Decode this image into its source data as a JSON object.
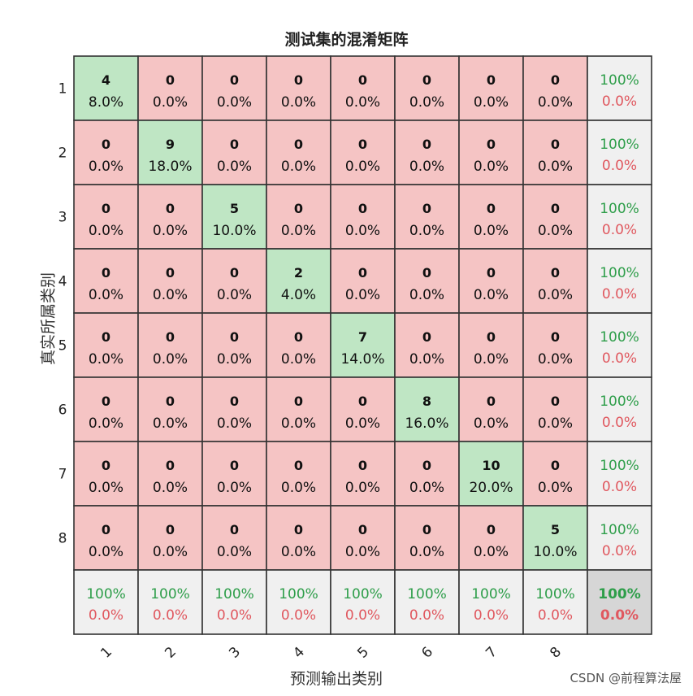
{
  "chart_data": {
    "type": "heatmap",
    "title": "测试集的混淆矩阵",
    "xlabel": "预测输出类别",
    "ylabel": "真实所属类别",
    "classes": [
      "1",
      "2",
      "3",
      "4",
      "5",
      "6",
      "7",
      "8"
    ],
    "matrix": [
      [
        4,
        0,
        0,
        0,
        0,
        0,
        0,
        0
      ],
      [
        0,
        9,
        0,
        0,
        0,
        0,
        0,
        0
      ],
      [
        0,
        0,
        5,
        0,
        0,
        0,
        0,
        0
      ],
      [
        0,
        0,
        0,
        2,
        0,
        0,
        0,
        0
      ],
      [
        0,
        0,
        0,
        0,
        7,
        0,
        0,
        0
      ],
      [
        0,
        0,
        0,
        0,
        0,
        8,
        0,
        0
      ],
      [
        0,
        0,
        0,
        0,
        0,
        0,
        10,
        0
      ],
      [
        0,
        0,
        0,
        0,
        0,
        0,
        0,
        5
      ]
    ],
    "cell_percents": [
      [
        "8.0%",
        "0.0%",
        "0.0%",
        "0.0%",
        "0.0%",
        "0.0%",
        "0.0%",
        "0.0%"
      ],
      [
        "0.0%",
        "18.0%",
        "0.0%",
        "0.0%",
        "0.0%",
        "0.0%",
        "0.0%",
        "0.0%"
      ],
      [
        "0.0%",
        "0.0%",
        "10.0%",
        "0.0%",
        "0.0%",
        "0.0%",
        "0.0%",
        "0.0%"
      ],
      [
        "0.0%",
        "0.0%",
        "0.0%",
        "4.0%",
        "0.0%",
        "0.0%",
        "0.0%",
        "0.0%"
      ],
      [
        "0.0%",
        "0.0%",
        "0.0%",
        "0.0%",
        "14.0%",
        "0.0%",
        "0.0%",
        "0.0%"
      ],
      [
        "0.0%",
        "0.0%",
        "0.0%",
        "0.0%",
        "0.0%",
        "16.0%",
        "0.0%",
        "0.0%"
      ],
      [
        "0.0%",
        "0.0%",
        "0.0%",
        "0.0%",
        "0.0%",
        "0.0%",
        "20.0%",
        "0.0%"
      ],
      [
        "0.0%",
        "0.0%",
        "0.0%",
        "0.0%",
        "0.0%",
        "0.0%",
        "0.0%",
        "10.0%"
      ]
    ],
    "row_summary": [
      [
        "100%",
        "0.0%"
      ],
      [
        "100%",
        "0.0%"
      ],
      [
        "100%",
        "0.0%"
      ],
      [
        "100%",
        "0.0%"
      ],
      [
        "100%",
        "0.0%"
      ],
      [
        "100%",
        "0.0%"
      ],
      [
        "100%",
        "0.0%"
      ],
      [
        "100%",
        "0.0%"
      ]
    ],
    "col_summary": [
      [
        "100%",
        "0.0%"
      ],
      [
        "100%",
        "0.0%"
      ],
      [
        "100%",
        "0.0%"
      ],
      [
        "100%",
        "0.0%"
      ],
      [
        "100%",
        "0.0%"
      ],
      [
        "100%",
        "0.0%"
      ],
      [
        "100%",
        "0.0%"
      ],
      [
        "100%",
        "0.0%"
      ]
    ],
    "overall": [
      "100%",
      "0.0%"
    ],
    "colors": {
      "correct_cell": "#bfe6c4",
      "wrong_cell": "#f5c4c4",
      "summary_cell": "#f0f0f0",
      "overall_cell": "#d6d6d6",
      "correct_text": "#2e9e4a",
      "wrong_text": "#e0585f",
      "grid_line": "#333333"
    }
  },
  "watermark": "CSDN @前程算法屋"
}
